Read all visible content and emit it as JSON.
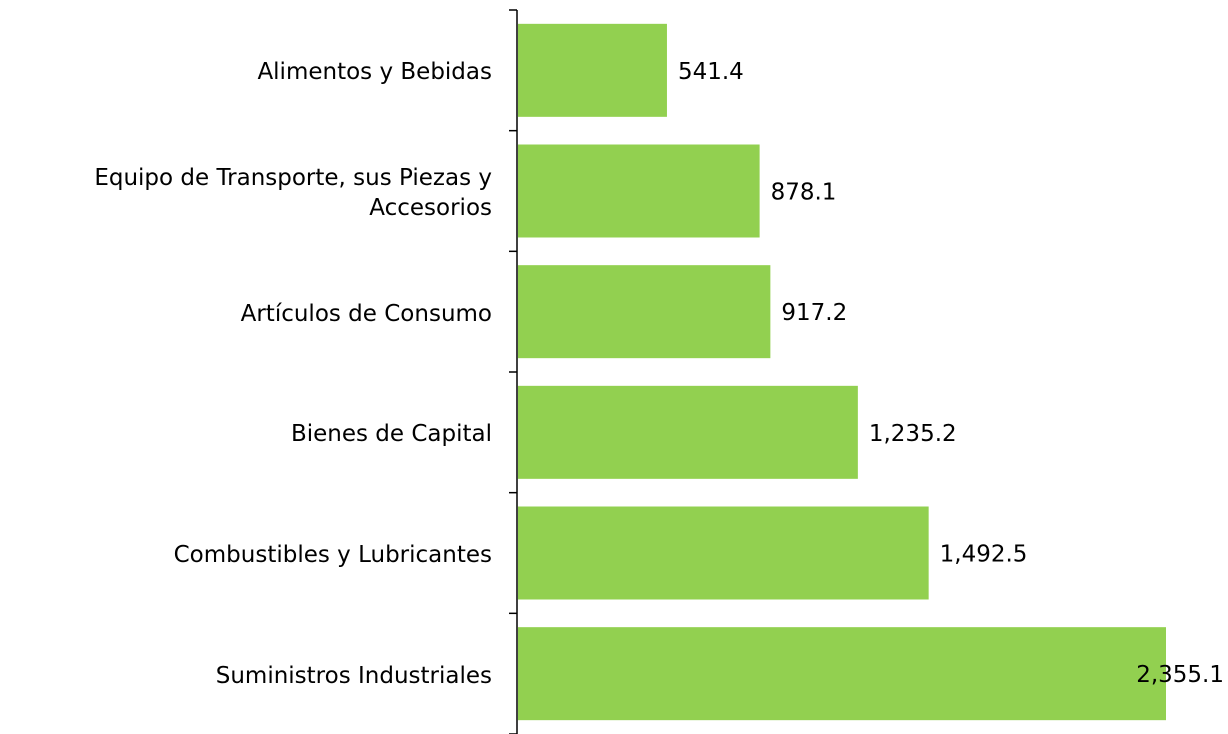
{
  "chart_data": {
    "type": "bar",
    "orientation": "horizontal",
    "categories": [
      "Alimentos y Bebidas",
      "Equipo de Transporte, sus Piezas y Accesorios",
      "Artículos de Consumo",
      "Bienes de Capital",
      "Combustibles y Lubricantes",
      "Suministros Industriales"
    ],
    "values": [
      541.4,
      878.1,
      917.2,
      1235.2,
      1492.5,
      2355.1
    ],
    "value_labels": [
      "541.4",
      "878.1",
      "917.2",
      "1,235.2",
      "1,492.5",
      "2,355.1"
    ],
    "color": "#92d050"
  }
}
